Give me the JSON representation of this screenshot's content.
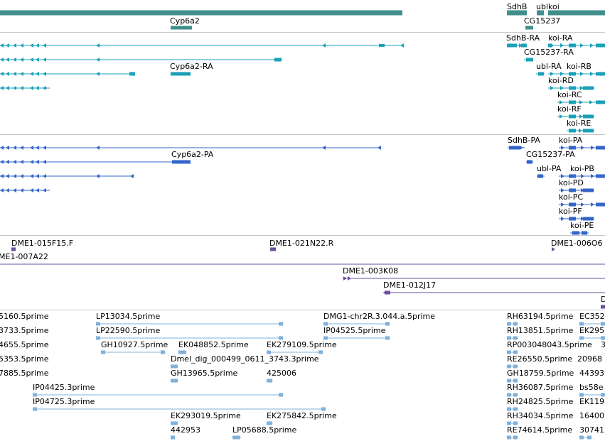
{
  "colors": {
    "gene": "#3f8f8b",
    "transcript_cyan": "#1aa1b9",
    "transcript_blue": "#3366c8",
    "bac": "#6b4fa0",
    "est": "#7fb1db",
    "separator": "#c0c4c8"
  },
  "tracks": {
    "genes": {
      "labels": [
        "SdhB",
        "ubl",
        "koi",
        "Cyp6a2",
        "CG15237"
      ]
    },
    "transcripts_a": {
      "labels": [
        "SdhB-RA",
        "koi-RA",
        "CG15237-RA",
        "Cyp6a2-RA",
        "ubl-RA",
        "koi-RB",
        "koi-RD",
        "koi-RC",
        "koi-RF",
        "koi-RE"
      ]
    },
    "transcripts_b": {
      "labels": [
        "SdhB-PA",
        "koi-PA",
        "Cyp6a2-PA",
        "CG15237-PA",
        "ubl-PA",
        "koi-PB",
        "koi-PD",
        "koi-PC",
        "koi-PF",
        "koi-PE"
      ]
    },
    "bacs": {
      "labels": [
        "DME1-015F15.F",
        "DME1-021N22.R",
        "DME1-006O6",
        "ME1-007A22",
        "DME1-003K08",
        "DME1-012J17",
        "D"
      ]
    },
    "ests": {
      "labels": [
        "5160.5prime",
        "LP13034.5prime",
        "DMG1-chr2R.3.044.a.5prime",
        "RH63194.5prime",
        "EC352",
        "3733.5prime",
        "LP22590.5prime",
        "IP04525.5prime",
        "RH13851.5prime",
        "EK295",
        "4655.5prime",
        "GH10927.5prime",
        "EK048852.5prime",
        "EK279109.5prime",
        "RP003048043.5prime",
        "3",
        "5353.5prime",
        "Dmel_dig_000499_0611_3743.3prime",
        "RE26550.5prime",
        "20968",
        "7885.5prime",
        "GH13965.5prime",
        "425006",
        "GH18759.5prime",
        "44393",
        "IP04425.3prime",
        "RH36087.5prime",
        "bs58e",
        "IP04725.3prime",
        "RH24825.5prime",
        "EK119",
        "EK293019.5prime",
        "EK275842.5prime",
        "RH34034.5prime",
        "16400",
        "442953",
        "LP05688.5prime",
        "RE74614.5prime",
        "30741"
      ]
    }
  }
}
